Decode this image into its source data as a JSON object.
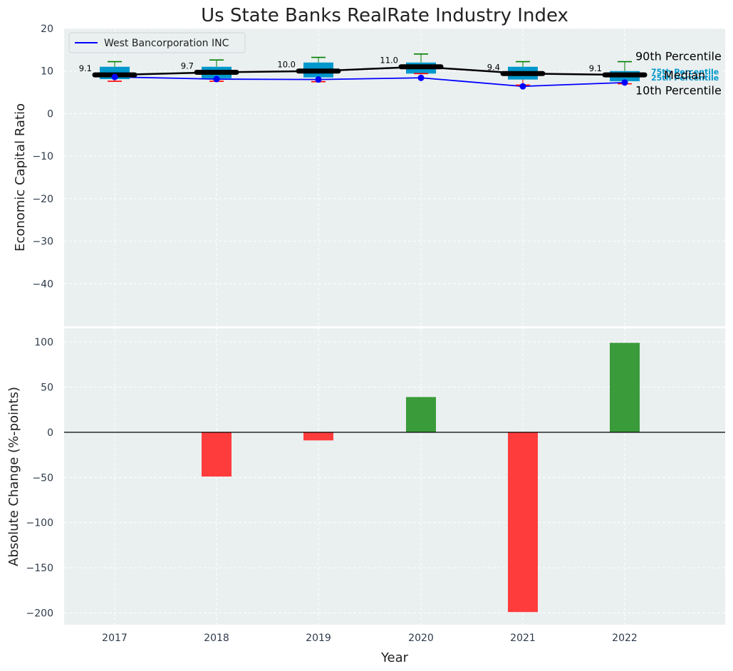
{
  "colors": {
    "plot_bg": "#eaeff0",
    "grid": "#ffffff",
    "box": "#0098cc",
    "whisker_top": "#008000",
    "whisker_bottom": "#ff0000",
    "median": "#000000",
    "company": "#0000ff",
    "positive": "#3a9b3a",
    "negative": "#ff3c3c"
  },
  "chart_data": [
    {
      "type": "box",
      "title": "Us State Banks RealRate Industry Index",
      "xlabel": "",
      "ylabel": "Economic Capital Ratio",
      "ylim": [
        -50,
        20
      ],
      "yticks": [
        20,
        10,
        0,
        -10,
        -20,
        -30,
        -40
      ],
      "ytick_labels": [
        "20",
        "10",
        "0",
        "−10",
        "−20",
        "−30",
        "−40"
      ],
      "categories": [
        "2017",
        "2018",
        "2019",
        "2020",
        "2021",
        "2022"
      ],
      "p10": [
        7.6,
        7.6,
        7.5,
        9.4,
        6.7,
        7.0
      ],
      "q25": [
        8.1,
        8.3,
        8.5,
        9.4,
        8.0,
        7.6
      ],
      "median": [
        9.1,
        9.7,
        10.0,
        11.0,
        9.4,
        9.1
      ],
      "q75": [
        11.0,
        11.0,
        12.0,
        12.0,
        11.0,
        10.0
      ],
      "p90": [
        12.2,
        12.6,
        13.2,
        14.0,
        12.2,
        12.2
      ],
      "median_labels": [
        "9.1",
        "9.7",
        "10.0",
        "11.0",
        "9.4",
        "9.1"
      ],
      "series": [
        {
          "name": "West Bancorporation INC",
          "values": [
            8.6,
            8.1,
            8.0,
            8.4,
            6.4,
            7.3
          ]
        }
      ],
      "legend": "top-left",
      "annotations": {
        "p90": "90th Percentile",
        "median": "Median",
        "p10": "10th Percentile",
        "q25": "25th Percentile",
        "q75": "75th Percentile"
      }
    },
    {
      "type": "bar",
      "xlabel": "Year",
      "ylabel": "Absolute Change (%-points)",
      "ylim": [
        -213,
        115
      ],
      "yticks": [
        100,
        50,
        0,
        -50,
        -100,
        -150,
        -200
      ],
      "ytick_labels": [
        "100",
        "50",
        "0",
        "−50",
        "−100",
        "−150",
        "−200"
      ],
      "categories": [
        "2017",
        "2018",
        "2019",
        "2020",
        "2021",
        "2022"
      ],
      "values": [
        0,
        -49,
        -9,
        39,
        -199,
        99
      ]
    }
  ]
}
